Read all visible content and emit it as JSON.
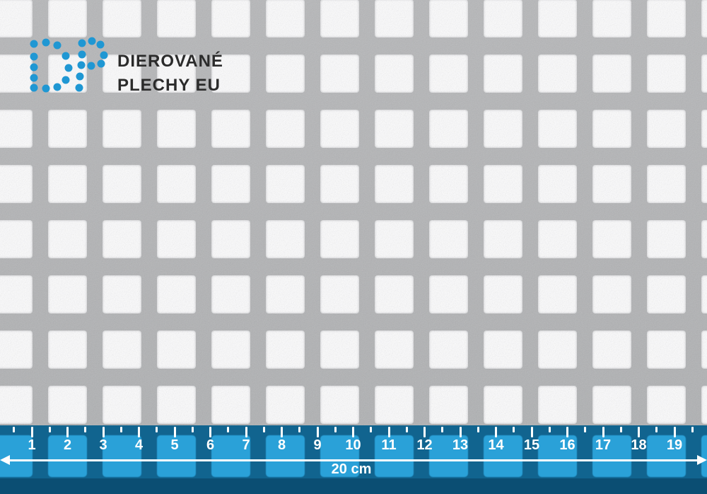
{
  "brand": {
    "logo_text_line1": "DIEROVANÉ",
    "logo_text_line2": "PLECHY EU",
    "dot_color": "#1f97d3",
    "text_color": "#2b2b2b"
  },
  "logo_dots": {
    "radius": 5.5,
    "d_points": [
      [
        48,
        62
      ],
      [
        65,
        60
      ],
      [
        81,
        64
      ],
      [
        93,
        79
      ],
      [
        97,
        96
      ],
      [
        93,
        113
      ],
      [
        81,
        123
      ],
      [
        65,
        125
      ],
      [
        48,
        124
      ],
      [
        48,
        110
      ],
      [
        48,
        95
      ],
      [
        48,
        80
      ]
    ],
    "p_points": [
      [
        116,
        61
      ],
      [
        130,
        58
      ],
      [
        142,
        63
      ],
      [
        147,
        78
      ],
      [
        143,
        90
      ],
      [
        129,
        93
      ],
      [
        116,
        77
      ],
      [
        115,
        92
      ],
      [
        113,
        108
      ],
      [
        112,
        124
      ]
    ]
  },
  "sheet": {
    "base_color": "#b3b4b6",
    "hole_color": "#fdfdfe",
    "grid": {
      "col_lefts": [
        -9,
        68,
        145,
        222,
        299,
        376,
        453,
        530,
        607,
        684,
        761,
        838,
        915,
        992
      ],
      "row_tops": [
        -1,
        77,
        155,
        233,
        311,
        389,
        467,
        545
      ],
      "hole_width": 55,
      "hole_height": 54,
      "corner_radius": 4
    }
  },
  "ruler": {
    "band_color": "#11648f",
    "strip_color": "#0b4e73",
    "square_color": "#2aa1d8",
    "tick_color": "#ffffff",
    "text_color": "#ffffff",
    "tick_origin_x": 45,
    "tick_spacing": 50.5,
    "numbers": [
      "1",
      "2",
      "3",
      "4",
      "5",
      "6",
      "7",
      "8",
      "9",
      "10",
      "11",
      "12",
      "13",
      "14",
      "15",
      "16",
      "17",
      "18",
      "19"
    ],
    "total_label": "20 cm"
  }
}
